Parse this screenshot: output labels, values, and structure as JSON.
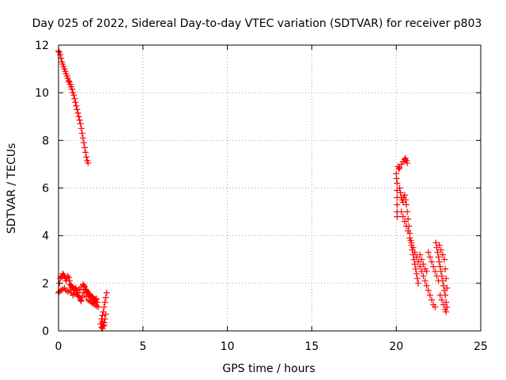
{
  "chart_data": {
    "type": "scatter",
    "title": "Day 025 of 2022, Sidereal Day-to-day VTEC variation (SDTVAR) for receiver p803",
    "xlabel": "GPS time / hours",
    "ylabel": "SDTVAR / TECUs",
    "xlim": [
      0,
      25
    ],
    "ylim": [
      0,
      12
    ],
    "xticks": [
      0,
      5,
      10,
      15,
      20,
      25
    ],
    "yticks": [
      0,
      2,
      4,
      6,
      8,
      10,
      12
    ],
    "grid": true,
    "marker": "+",
    "series": [
      {
        "name": "SDTVAR",
        "color": "#ff0000",
        "points": [
          [
            0.0,
            11.75
          ],
          [
            0.05,
            11.7
          ],
          [
            0.1,
            11.6
          ],
          [
            0.15,
            11.45
          ],
          [
            0.2,
            11.3
          ],
          [
            0.25,
            11.2
          ],
          [
            0.3,
            11.1
          ],
          [
            0.35,
            11.0
          ],
          [
            0.4,
            10.9
          ],
          [
            0.45,
            10.8
          ],
          [
            0.5,
            10.7
          ],
          [
            0.55,
            10.6
          ],
          [
            0.6,
            10.5
          ],
          [
            0.65,
            10.45
          ],
          [
            0.7,
            10.35
          ],
          [
            0.75,
            10.25
          ],
          [
            0.8,
            10.15
          ],
          [
            0.85,
            10.0
          ],
          [
            0.9,
            9.9
          ],
          [
            0.95,
            9.75
          ],
          [
            1.0,
            9.6
          ],
          [
            1.05,
            9.45
          ],
          [
            1.1,
            9.3
          ],
          [
            1.15,
            9.15
          ],
          [
            1.2,
            9.0
          ],
          [
            1.25,
            8.85
          ],
          [
            1.3,
            8.7
          ],
          [
            1.35,
            8.5
          ],
          [
            1.4,
            8.3
          ],
          [
            1.45,
            8.1
          ],
          [
            1.5,
            7.9
          ],
          [
            1.55,
            7.7
          ],
          [
            1.6,
            7.5
          ],
          [
            1.65,
            7.3
          ],
          [
            1.7,
            7.15
          ],
          [
            1.75,
            7.05
          ],
          [
            0.0,
            1.6
          ],
          [
            0.05,
            2.0
          ],
          [
            0.1,
            2.2
          ],
          [
            0.15,
            2.3
          ],
          [
            0.2,
            2.25
          ],
          [
            0.25,
            2.4
          ],
          [
            0.3,
            2.35
          ],
          [
            0.35,
            2.3
          ],
          [
            0.4,
            2.2
          ],
          [
            0.45,
            2.1
          ],
          [
            0.5,
            2.2
          ],
          [
            0.55,
            2.3
          ],
          [
            0.6,
            2.25
          ],
          [
            0.65,
            2.1
          ],
          [
            0.7,
            1.95
          ],
          [
            0.75,
            1.9
          ],
          [
            0.8,
            1.85
          ],
          [
            0.85,
            1.8
          ],
          [
            0.9,
            1.75
          ],
          [
            0.95,
            1.7
          ],
          [
            1.0,
            1.8
          ],
          [
            1.05,
            1.75
          ],
          [
            1.1,
            1.6
          ],
          [
            1.15,
            1.5
          ],
          [
            1.2,
            1.45
          ],
          [
            1.25,
            1.4
          ],
          [
            1.3,
            1.3
          ],
          [
            1.35,
            1.25
          ],
          [
            1.4,
            1.4
          ],
          [
            1.45,
            1.6
          ],
          [
            1.5,
            1.9
          ],
          [
            1.55,
            1.85
          ],
          [
            1.6,
            1.75
          ],
          [
            1.65,
            1.7
          ],
          [
            1.7,
            1.65
          ],
          [
            1.75,
            1.6
          ],
          [
            1.8,
            1.55
          ],
          [
            1.85,
            1.5
          ],
          [
            1.9,
            1.45
          ],
          [
            1.95,
            1.4
          ],
          [
            2.0,
            1.45
          ],
          [
            2.05,
            1.4
          ],
          [
            2.1,
            1.3
          ],
          [
            2.15,
            1.25
          ],
          [
            2.2,
            1.3
          ],
          [
            2.25,
            1.35
          ],
          [
            2.3,
            1.2
          ],
          [
            2.35,
            1.0
          ],
          [
            0.05,
            1.65
          ],
          [
            0.15,
            1.7
          ],
          [
            0.25,
            1.75
          ],
          [
            0.35,
            1.8
          ],
          [
            0.45,
            1.7
          ],
          [
            0.55,
            1.65
          ],
          [
            0.65,
            1.7
          ],
          [
            0.75,
            1.6
          ],
          [
            0.85,
            1.5
          ],
          [
            0.95,
            1.55
          ],
          [
            1.05,
            1.6
          ],
          [
            1.15,
            1.7
          ],
          [
            1.25,
            1.75
          ],
          [
            1.35,
            1.85
          ],
          [
            1.45,
            1.95
          ],
          [
            1.55,
            1.6
          ],
          [
            1.65,
            1.45
          ],
          [
            1.75,
            1.3
          ],
          [
            1.85,
            1.25
          ],
          [
            1.95,
            1.2
          ],
          [
            2.05,
            1.15
          ],
          [
            2.15,
            1.1
          ],
          [
            2.25,
            1.05
          ],
          [
            2.5,
            0.3
          ],
          [
            2.55,
            0.15
          ],
          [
            2.6,
            0.1
          ],
          [
            2.65,
            0.2
          ],
          [
            2.7,
            0.35
          ],
          [
            2.75,
            0.5
          ],
          [
            2.8,
            0.7
          ],
          [
            2.55,
            0.5
          ],
          [
            2.6,
            0.65
          ],
          [
            2.65,
            0.8
          ],
          [
            2.7,
            1.0
          ],
          [
            2.75,
            1.2
          ],
          [
            2.8,
            1.4
          ],
          [
            2.85,
            1.6
          ],
          [
            2.7,
            0.25
          ],
          [
            2.6,
            0.4
          ],
          [
            20.0,
            6.6
          ],
          [
            20.02,
            6.4
          ],
          [
            20.05,
            6.2
          ],
          [
            20.05,
            5.9
          ],
          [
            20.05,
            5.6
          ],
          [
            20.05,
            5.3
          ],
          [
            20.05,
            5.0
          ],
          [
            20.05,
            4.8
          ],
          [
            20.1,
            6.9
          ],
          [
            20.15,
            6.8
          ],
          [
            20.2,
            6.85
          ],
          [
            20.3,
            7.0
          ],
          [
            20.4,
            7.1
          ],
          [
            20.5,
            7.2
          ],
          [
            20.55,
            7.25
          ],
          [
            20.6,
            7.15
          ],
          [
            20.65,
            7.05
          ],
          [
            20.2,
            6.0
          ],
          [
            20.25,
            5.8
          ],
          [
            20.3,
            5.6
          ],
          [
            20.35,
            5.5
          ],
          [
            20.4,
            5.4
          ],
          [
            20.45,
            5.6
          ],
          [
            20.5,
            5.7
          ],
          [
            20.55,
            5.5
          ],
          [
            20.6,
            5.3
          ],
          [
            20.65,
            5.0
          ],
          [
            20.7,
            4.7
          ],
          [
            20.75,
            4.4
          ],
          [
            20.8,
            4.1
          ],
          [
            20.85,
            3.8
          ],
          [
            20.9,
            3.6
          ],
          [
            20.95,
            3.4
          ],
          [
            21.0,
            3.2
          ],
          [
            21.05,
            3.0
          ],
          [
            21.1,
            2.8
          ],
          [
            21.15,
            2.6
          ],
          [
            21.2,
            2.4
          ],
          [
            21.25,
            2.2
          ],
          [
            21.3,
            2.0
          ],
          [
            20.3,
            5.0
          ],
          [
            20.4,
            4.8
          ],
          [
            20.5,
            4.6
          ],
          [
            20.6,
            4.4
          ],
          [
            20.7,
            4.2
          ],
          [
            20.8,
            3.9
          ],
          [
            20.9,
            3.7
          ],
          [
            21.0,
            3.5
          ],
          [
            21.1,
            3.3
          ],
          [
            21.2,
            3.1
          ],
          [
            21.3,
            2.9
          ],
          [
            21.4,
            2.7
          ],
          [
            21.5,
            2.5
          ],
          [
            21.6,
            2.3
          ],
          [
            21.7,
            2.1
          ],
          [
            21.8,
            1.9
          ],
          [
            21.9,
            1.7
          ],
          [
            22.0,
            1.5
          ],
          [
            22.1,
            1.3
          ],
          [
            22.2,
            1.1
          ],
          [
            22.3,
            1.0
          ],
          [
            21.4,
            3.2
          ],
          [
            21.5,
            3.0
          ],
          [
            21.6,
            2.8
          ],
          [
            21.7,
            2.6
          ],
          [
            21.8,
            2.5
          ],
          [
            21.9,
            3.3
          ],
          [
            22.0,
            3.1
          ],
          [
            22.1,
            2.9
          ],
          [
            22.2,
            2.7
          ],
          [
            22.3,
            2.5
          ],
          [
            22.4,
            2.3
          ],
          [
            22.5,
            2.1
          ],
          [
            22.35,
            3.7
          ],
          [
            22.4,
            3.5
          ],
          [
            22.45,
            3.3
          ],
          [
            22.5,
            3.1
          ],
          [
            22.55,
            2.9
          ],
          [
            22.6,
            2.7
          ],
          [
            22.65,
            2.5
          ],
          [
            22.7,
            2.3
          ],
          [
            22.75,
            2.1
          ],
          [
            22.8,
            1.9
          ],
          [
            22.85,
            1.7
          ],
          [
            22.9,
            1.5
          ],
          [
            22.95,
            1.2
          ],
          [
            23.0,
            1.0
          ],
          [
            22.6,
            1.5
          ],
          [
            22.7,
            1.3
          ],
          [
            22.8,
            1.1
          ],
          [
            22.9,
            0.9
          ],
          [
            22.95,
            0.8
          ],
          [
            22.75,
            3.2
          ],
          [
            22.85,
            3.0
          ],
          [
            22.9,
            2.6
          ],
          [
            22.95,
            2.2
          ],
          [
            23.0,
            1.8
          ],
          [
            22.55,
            3.6
          ],
          [
            22.65,
            3.4
          ]
        ]
      }
    ]
  }
}
